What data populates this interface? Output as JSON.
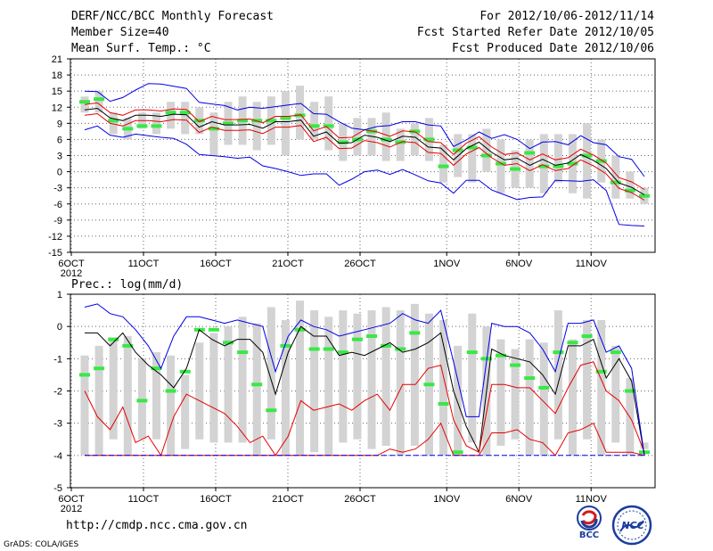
{
  "header": {
    "title": "DERF/NCC/BCC Monthly Forecast",
    "member_size": "Member Size=40",
    "variable": "Mean Surf. Temp.: °C",
    "period": "For 2012/10/06-2012/11/14",
    "fcst_started": "Fcst Started Refer Date 2012/10/05",
    "fcst_produced": "Fcst Produced Date 2012/10/06"
  },
  "footer": {
    "url": "http://cmdp.ncc.cma.gov.cn",
    "grads": "GrADS: COLA/IGES",
    "logo_bcc": "BCC",
    "logo_ncc": "NCC"
  },
  "colors": {
    "box": "#d3d3d4",
    "median": "#39e845",
    "mean": "#000000",
    "red": "#e60000",
    "blue": "#0000e6",
    "grid": "#666666"
  },
  "chart_data": [
    {
      "type": "box-plume",
      "title": "Mean Surf. Temp.: °C",
      "xlabel": "",
      "ylabel": "",
      "x_tick_labels": [
        "6OCT",
        "11OCT",
        "16OCT",
        "21OCT",
        "26OCT",
        "1NOV",
        "6NOV",
        "11NOV"
      ],
      "x_tick_days": [
        0,
        5,
        10,
        15,
        20,
        26,
        31,
        36
      ],
      "year_label": "2012",
      "ylim": [
        -15,
        21
      ],
      "yticks": [
        -15,
        -12,
        -9,
        -6,
        -3,
        0,
        3,
        6,
        9,
        12,
        15,
        18,
        21
      ],
      "grid": true,
      "boxes": {
        "low": [
          11,
          11,
          7,
          6,
          8,
          7,
          8,
          7,
          7,
          3,
          5,
          5,
          4,
          5,
          3,
          6,
          6,
          4,
          2,
          3,
          3,
          2,
          2,
          3,
          2,
          -2,
          -1,
          -2,
          0,
          -4,
          -3,
          -3,
          -4,
          -2,
          -4,
          -5,
          -2,
          -5,
          -5,
          -6
        ],
        "high": [
          14,
          15,
          11,
          10,
          11,
          11,
          13,
          13,
          12,
          11,
          13,
          14,
          13,
          14,
          15,
          16,
          13,
          14,
          9,
          10,
          10,
          11,
          8,
          9,
          10,
          5,
          7,
          7,
          8,
          6,
          4,
          6,
          7,
          7,
          7,
          9,
          6,
          3,
          0,
          -3
        ]
      },
      "median": [
        13,
        13.5,
        9.5,
        8,
        8.5,
        8.5,
        11,
        11,
        9.5,
        8,
        9,
        9.5,
        9.5,
        9.5,
        10,
        10.5,
        8.5,
        8.5,
        5.5,
        6,
        7.5,
        6,
        5.5,
        7.5,
        6,
        1,
        4,
        4.5,
        3,
        1.5,
        0.5,
        3.5,
        1,
        1,
        1.5,
        3,
        2,
        -2,
        -3.5,
        -4.5
      ],
      "series": [
        {
          "name": "ensemble-mean",
          "color": "#000000",
          "values": [
            11.5,
            11.8,
            10,
            9.5,
            10.5,
            10.5,
            10.3,
            10.7,
            10.6,
            8.3,
            9.3,
            8.7,
            8.7,
            8.8,
            8.1,
            9.3,
            9.3,
            9.6,
            6.6,
            7.4,
            5.3,
            5.4,
            6.8,
            6.4,
            5.6,
            6.6,
            6.4,
            4.6,
            4.4,
            2.2,
            4.3,
            5.5,
            3.6,
            2.2,
            2.5,
            1.2,
            2.3,
            1.2,
            1.6,
            3.2,
            2.1,
            0.6,
            -2.1,
            -2.9,
            -4.3
          ]
        },
        {
          "name": "upper-red",
          "color": "#e60000",
          "values": [
            12.5,
            12.8,
            11,
            10.5,
            11.5,
            11.5,
            11.3,
            11.7,
            11.6,
            9.3,
            10.3,
            9.7,
            9.7,
            9.8,
            9.1,
            10.3,
            10.3,
            10.6,
            7.6,
            8.4,
            6.3,
            6.4,
            7.8,
            7.4,
            6.6,
            7.6,
            7.4,
            5.6,
            5.4,
            3.2,
            5.3,
            6.5,
            4.6,
            3.2,
            3.5,
            2.2,
            3.3,
            2.2,
            2.6,
            4.2,
            3.1,
            1.6,
            -1.1,
            -1.9,
            -3.3
          ]
        },
        {
          "name": "lower-red",
          "color": "#e60000",
          "values": [
            10.5,
            10.8,
            9,
            8.5,
            9.5,
            9.5,
            9.3,
            9.7,
            9.6,
            7.3,
            8.3,
            7.7,
            7.7,
            7.8,
            7.1,
            8.3,
            8.3,
            8.6,
            5.6,
            6.4,
            4.3,
            4.4,
            5.8,
            5.4,
            4.6,
            5.6,
            5.4,
            3.6,
            3.4,
            1.2,
            3.3,
            4.5,
            2.6,
            1.2,
            1.5,
            0.2,
            1.3,
            0.2,
            0.6,
            2.2,
            1.1,
            -0.4,
            -3.1,
            -3.9,
            -5.3
          ]
        },
        {
          "name": "upper-blue",
          "color": "#0000e6",
          "values": [
            15,
            14.9,
            13.1,
            13.8,
            15.2,
            16.4,
            16.3,
            15.9,
            15.5,
            12.9,
            12.6,
            12.3,
            11.5,
            12,
            11.8,
            12.1,
            12.4,
            12.7,
            10.8,
            10.7,
            9.3,
            8.1,
            7.8,
            8.4,
            8.6,
            9.3,
            9.3,
            8.7,
            8.5,
            4.7,
            5.9,
            7.4,
            6.2,
            6.9,
            6,
            4.3,
            5.5,
            5.6,
            5,
            6.7,
            5.4,
            5,
            2.8,
            2.3,
            -0.9
          ]
        },
        {
          "name": "lower-blue",
          "color": "#0000e6",
          "values": [
            7.8,
            8.5,
            6.8,
            6.4,
            7,
            6.7,
            6.4,
            6.2,
            5.1,
            3.2,
            3,
            2.8,
            2.5,
            2.7,
            1.1,
            0.6,
            0,
            -0.7,
            -0.4,
            -0.4,
            -2.5,
            -1.4,
            0,
            0.3,
            -0.5,
            0.4,
            -0.6,
            -1.7,
            -2.1,
            -4,
            -1.6,
            -1.6,
            -3.4,
            -4.3,
            -5.2,
            -4.8,
            -4.7,
            -1.6,
            -1.7,
            -1.8,
            -1.5,
            -3.5,
            -9.8,
            -10,
            -10.1
          ]
        }
      ]
    },
    {
      "type": "box-plume",
      "title": "Prec.: log(mm/d)",
      "xlabel": "",
      "ylabel": "",
      "x_tick_labels": [
        "6OCT",
        "11OCT",
        "16OCT",
        "21OCT",
        "26OCT",
        "1NOV",
        "6NOV",
        "11NOV"
      ],
      "x_tick_days": [
        0,
        5,
        10,
        15,
        20,
        26,
        31,
        36
      ],
      "year_label": "2012",
      "ylim": [
        -5,
        1
      ],
      "yticks": [
        -5,
        -4,
        -3,
        -2,
        -1,
        0,
        1
      ],
      "grid": true,
      "boxes": {
        "low": [
          -4,
          -4,
          -3.5,
          -4,
          -3.5,
          -3.5,
          -4,
          -3.8,
          -3.5,
          -3.6,
          -3.6,
          -3.6,
          -4,
          -3.5,
          -4,
          -4,
          -3.9,
          -4,
          -3.6,
          -3.5,
          -3.8,
          -3.7,
          -4,
          -3.7,
          -4,
          -4,
          -4,
          -3.6,
          -4,
          -3.7,
          -3.5,
          -4,
          -4,
          -3.5,
          -4,
          -3.5,
          -4,
          -3.6,
          -4,
          -3.8
        ],
        "high": [
          -0.9,
          -0.6,
          -0.4,
          -0.3,
          -1,
          -0.8,
          -0.9,
          -1.5,
          -0.5,
          -0.2,
          0,
          0.3,
          0.1,
          0.6,
          0.2,
          0.8,
          0.5,
          0.3,
          0.5,
          0.4,
          0.5,
          0.6,
          0.5,
          0.7,
          0.4,
          0.2,
          -0.6,
          0.4,
          0,
          -0.4,
          -0.7,
          -0.4,
          -0.5,
          0.5,
          -0.4,
          0.2,
          0.2,
          -0.6,
          -1.6,
          -3.6
        ]
      },
      "median": [
        -1.5,
        -1.3,
        -0.4,
        -0.6,
        -2.3,
        -1.3,
        -2,
        -1.4,
        -0.1,
        -0.1,
        -0.5,
        -0.8,
        -1.8,
        -2.6,
        -0.6,
        -0.1,
        -0.7,
        -0.7,
        -0.8,
        -0.4,
        -0.3,
        -0.6,
        -0.7,
        -0.2,
        -1.8,
        -2.4,
        -3.9,
        -0.8,
        -1,
        -0.9,
        -1.2,
        -1.6,
        -1.9,
        -0.8,
        -0.5,
        -0.3,
        -1.4,
        -0.8,
        -2,
        -3.9
      ],
      "series": [
        {
          "name": "ensemble-mean",
          "color": "#000000",
          "values": [
            -0.2,
            -0.2,
            -0.6,
            -0.2,
            -0.8,
            -1.2,
            -1.5,
            -1.9,
            -1.3,
            -0.1,
            -0.4,
            -0.6,
            -0.4,
            -0.4,
            -0.8,
            -2.1,
            -0.8,
            0,
            -0.3,
            -0.3,
            -0.9,
            -0.8,
            -0.9,
            -0.7,
            -0.5,
            -0.8,
            -0.7,
            -0.5,
            -0.2,
            -2,
            -3.1,
            -3.9,
            -0.7,
            -0.9,
            -1,
            -1.1,
            -1.5,
            -2.1,
            -0.6,
            -0.6,
            -0.4,
            -1.6,
            -1,
            -1.7,
            -4
          ]
        },
        {
          "name": "upper-red",
          "color": "#e60000",
          "values": [
            -2,
            -2.8,
            -3.2,
            -2.5,
            -3.6,
            -3.4,
            -4,
            -2.8,
            -2.1,
            -2.3,
            -2.5,
            -2.7,
            -3.1,
            -3.6,
            -3.4,
            -4,
            -3.4,
            -2.3,
            -2.6,
            -2.5,
            -2.4,
            -2.6,
            -2.3,
            -2.1,
            -2.6,
            -1.8,
            -1.8,
            -1.3,
            -1.2,
            -2.9,
            -3.7,
            -3.9,
            -1.8,
            -1.8,
            -1.9,
            -1.9,
            -2.3,
            -2.7,
            -1.9,
            -1.2,
            -1.1,
            -2,
            -2.3,
            -2.9,
            -3.9
          ]
        },
        {
          "name": "lower-red",
          "color": "#e60000",
          "values": [
            -4,
            -4,
            -4,
            -4,
            -4,
            -4,
            -4,
            -4,
            -4,
            -4,
            -4,
            -4,
            -4,
            -4,
            -4,
            -4,
            -4,
            -4,
            -4,
            -4,
            -4,
            -4,
            -4,
            -4,
            -3.8,
            -3.9,
            -3.8,
            -3.5,
            -3,
            -4,
            -4,
            -4,
            -3.3,
            -3.3,
            -3.2,
            -3.5,
            -3.6,
            -4,
            -3.3,
            -3.2,
            -3,
            -3.9,
            -3.9,
            -3.9,
            -4
          ]
        },
        {
          "name": "upper-blue",
          "color": "#0000e6",
          "values": [
            0.6,
            0.7,
            0.4,
            0.3,
            -0.1,
            -0.6,
            -1.3,
            -0.3,
            0.3,
            0.3,
            0.2,
            0.1,
            0.2,
            0.1,
            0,
            -1.4,
            -0.3,
            0.2,
            0,
            -0.1,
            -0.3,
            -0.2,
            -0.1,
            0,
            0.1,
            0.4,
            0.2,
            0.1,
            0.5,
            -1.1,
            -2.8,
            -2.8,
            0.1,
            0,
            0,
            -0.2,
            -0.7,
            -1.4,
            0.1,
            0.1,
            0.2,
            -0.8,
            -0.6,
            -1.3,
            -4
          ]
        },
        {
          "name": "lower-blue",
          "color": "#0000e6",
          "values": [
            -4,
            -4,
            -4,
            -4,
            -4,
            -4,
            -4,
            -4,
            -4,
            -4,
            -4,
            -4,
            -4,
            -4,
            -4,
            -4,
            -4,
            -4,
            -4,
            -4,
            -4,
            -4,
            -4,
            -4,
            -4,
            -4,
            -4,
            -4,
            -4,
            -4,
            -4,
            -4,
            -4,
            -4,
            -4,
            -4,
            -4,
            -4,
            -4,
            -4,
            -4,
            -4,
            -4,
            -4,
            -4
          ]
        }
      ]
    }
  ]
}
